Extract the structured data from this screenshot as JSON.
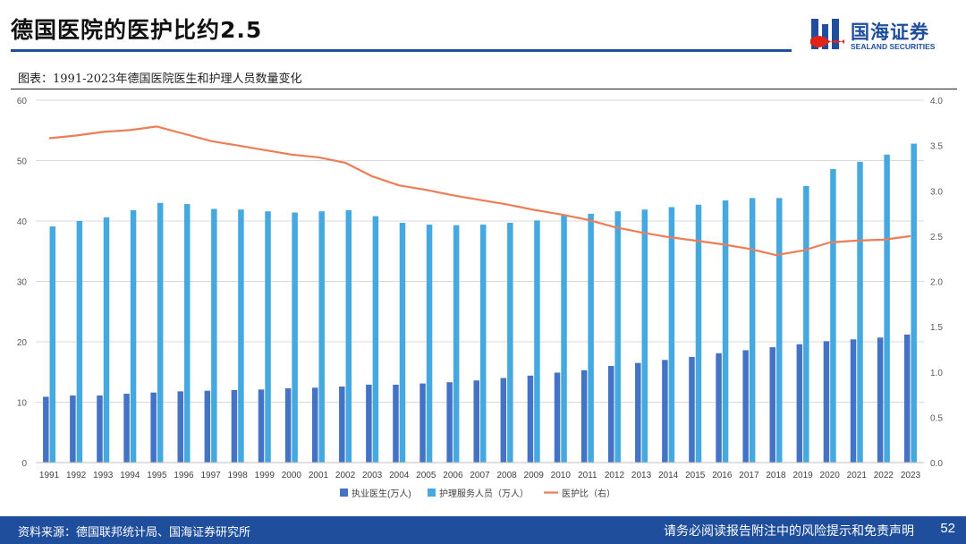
{
  "header": {
    "title": "德国医院的医护比约2.5"
  },
  "logo": {
    "cn": "国海证券",
    "en": "SEALAND SECURITIES"
  },
  "figure_caption": "图表：1991-2023年德国医院医生和护理人员数量变化",
  "footer": {
    "source": "资料来源：德国联邦统计局、国海证券研究所",
    "disclaimer": "请务必阅读报告附注中的风险提示和免责声明",
    "page": "52"
  },
  "colors": {
    "brand": "#1f4e9c",
    "series_doctors": "#4472c4",
    "series_nurses": "#45a9e0",
    "series_ratio": "#ed7d57",
    "gridline": "#d9d9d9"
  },
  "chart_data": {
    "type": "bar+line",
    "categories": [
      "1991",
      "1992",
      "1993",
      "1994",
      "1995",
      "1996",
      "1997",
      "1998",
      "1999",
      "2000",
      "2001",
      "2002",
      "2003",
      "2004",
      "2005",
      "2006",
      "2007",
      "2008",
      "2009",
      "2010",
      "2011",
      "2012",
      "2013",
      "2014",
      "2015",
      "2016",
      "2017",
      "2018",
      "2019",
      "2020",
      "2021",
      "2022",
      "2023"
    ],
    "series": [
      {
        "name": "执业医生(万人)",
        "type": "bar",
        "axis": "left",
        "values": [
          10.9,
          11.1,
          11.1,
          11.4,
          11.6,
          11.8,
          11.9,
          12.0,
          12.1,
          12.3,
          12.4,
          12.6,
          12.9,
          12.9,
          13.1,
          13.3,
          13.6,
          14.0,
          14.4,
          14.9,
          15.3,
          16.0,
          16.5,
          17.0,
          17.5,
          18.1,
          18.6,
          19.1,
          19.6,
          20.1,
          20.4,
          20.7,
          21.2
        ]
      },
      {
        "name": "护理服务人员（万人）",
        "type": "bar",
        "axis": "left",
        "values": [
          39.1,
          40.0,
          40.6,
          41.8,
          43.0,
          42.8,
          42.0,
          41.9,
          41.6,
          41.4,
          41.6,
          41.8,
          40.8,
          39.7,
          39.4,
          39.3,
          39.4,
          39.7,
          40.1,
          40.9,
          41.2,
          41.6,
          41.9,
          42.3,
          42.7,
          43.4,
          43.8,
          43.8,
          45.8,
          48.6,
          49.8,
          51.0,
          52.8
        ]
      },
      {
        "name": "医护比（右）",
        "type": "line",
        "axis": "right",
        "values": [
          3.58,
          3.61,
          3.65,
          3.67,
          3.71,
          3.63,
          3.55,
          3.5,
          3.45,
          3.4,
          3.37,
          3.31,
          3.16,
          3.06,
          3.01,
          2.95,
          2.9,
          2.85,
          2.79,
          2.74,
          2.68,
          2.6,
          2.54,
          2.49,
          2.45,
          2.41,
          2.36,
          2.29,
          2.34,
          2.43,
          2.45,
          2.46,
          2.5
        ]
      }
    ],
    "y_left": {
      "min": 0,
      "max": 60,
      "ticks": [
        "0",
        "10",
        "20",
        "30",
        "40",
        "50",
        "60"
      ]
    },
    "y_right": {
      "min": 0,
      "max": 4,
      "ticks": [
        "0.0",
        "0.5",
        "1.0",
        "1.5",
        "2.0",
        "2.5",
        "3.0",
        "3.5",
        "4.0"
      ]
    },
    "grid": true,
    "legend_position": "bottom"
  }
}
